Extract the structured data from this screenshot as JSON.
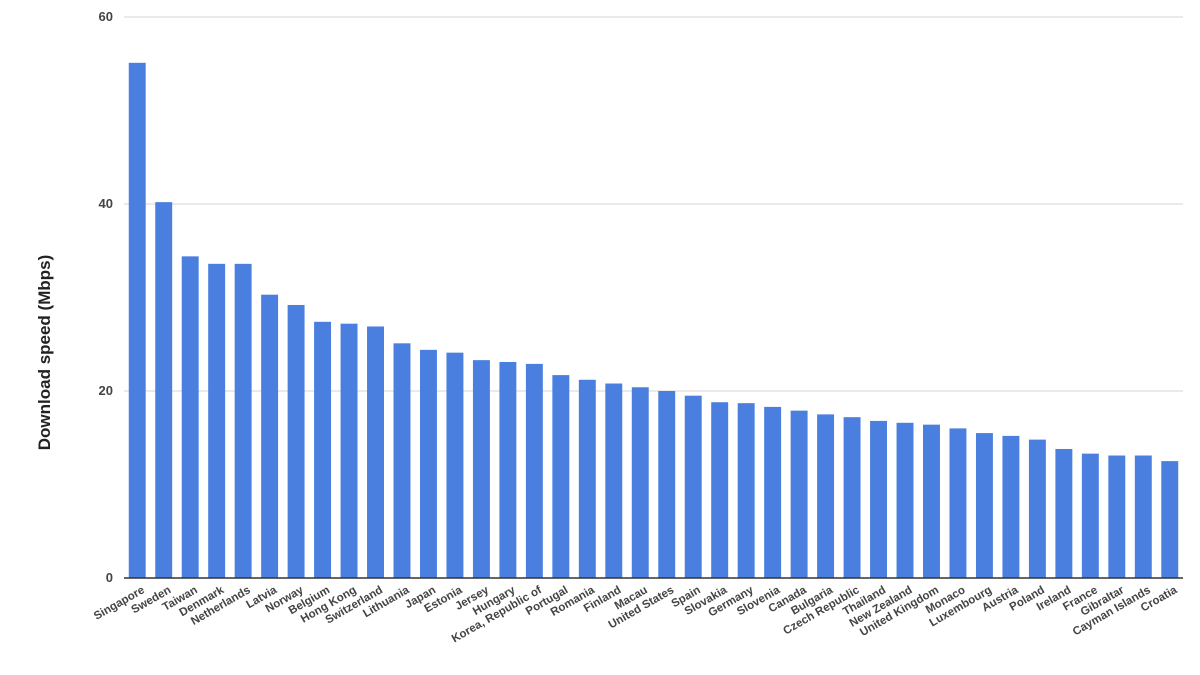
{
  "chart_data": {
    "type": "bar",
    "title": "",
    "xlabel": "",
    "ylabel": "Download speed (Mbps)",
    "ylim": [
      0,
      60
    ],
    "yticks": [
      0,
      20,
      40,
      60
    ],
    "grid": true,
    "bar_color": "#4a7fe0",
    "categories": [
      "Singapore",
      "Sweden",
      "Taiwan",
      "Denmark",
      "Netherlands",
      "Latvia",
      "Norway",
      "Belgium",
      "Hong Kong",
      "Switzerland",
      "Lithuania",
      "Japan",
      "Estonia",
      "Jersey",
      "Hungary",
      "Korea, Republic of",
      "Portugal",
      "Romania",
      "Finland",
      "Macau",
      "United States",
      "Spain",
      "Slovakia",
      "Germany",
      "Slovenia",
      "Canada",
      "Bulgaria",
      "Czech Republic",
      "Thailand",
      "New Zealand",
      "United Kingdom",
      "Monaco",
      "Luxembourg",
      "Austria",
      "Poland",
      "Ireland",
      "France",
      "Gibraltar",
      "Cayman Islands",
      "Croatia"
    ],
    "values": [
      55.1,
      40.2,
      34.4,
      33.6,
      33.6,
      30.3,
      29.2,
      27.4,
      27.2,
      26.9,
      25.1,
      24.4,
      24.1,
      23.3,
      23.1,
      22.9,
      21.7,
      21.2,
      20.8,
      20.4,
      20.0,
      19.5,
      18.8,
      18.7,
      18.3,
      17.9,
      17.5,
      17.2,
      16.8,
      16.6,
      16.4,
      16.0,
      15.5,
      15.2,
      14.8,
      13.8,
      13.3,
      13.1,
      13.1,
      12.5
    ]
  }
}
